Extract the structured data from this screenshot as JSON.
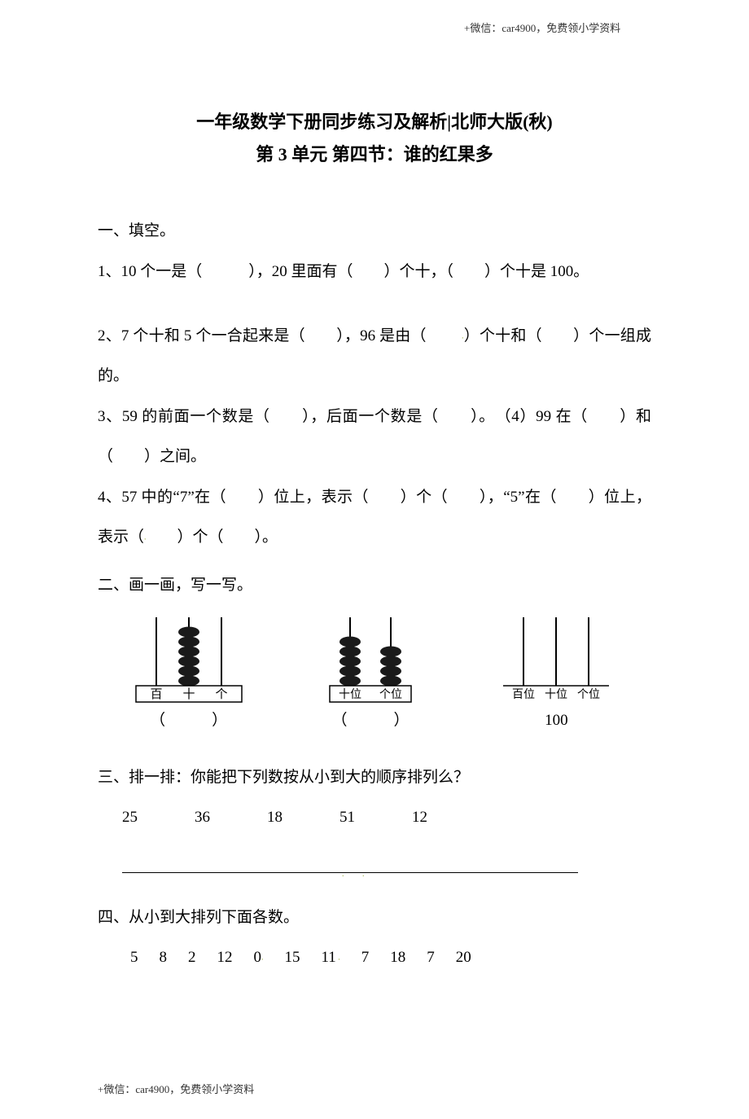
{
  "header_note": "+微信：car4900，免费领小学资料",
  "footer_note": "+微信：car4900，免费领小学资料",
  "title_line1": "一年级数学下册同步练习及解析|北师大版(秋)",
  "title_line2": "第 3 单元 第四节：谁的红果多",
  "sections": {
    "s1_label": "一、填空。",
    "q1": "1、10 个一是（　　　），20 里面有（　　）个十，（　　）个十是 100。",
    "q2": "2、7 个十和 5 个一合起来是（　　），96 是由（　　 ",
    "q2b": "）个十和（　　）个一组成的。",
    "q3": "3、59 的前面一个数是（　　），后面一个数是（　　）。　（4）99 在（　　）和（　　）之间。",
    "q4a": "4、57 中的“7”在（　　）位上，表示（　　）个（　　），“5”在（　　）位上，表示（",
    "q4b": "　　）个（　　）。",
    "s2_label": "二、画一画，写一写。",
    "s3_label": "三、排一排：你能把下列数按从小到大的顺序排列么？",
    "s4_label": "四、从小到大排列下面各数。"
  },
  "abacus": {
    "a1": {
      "labels": [
        "百",
        "十",
        "个"
      ],
      "beads": [
        0,
        6,
        0
      ],
      "caption": "（　　　）",
      "label_fontsize": 15,
      "has_box": true
    },
    "a2": {
      "labels": [
        "十位",
        "个位"
      ],
      "beads": [
        5,
        4
      ],
      "caption": "（　　　）",
      "label_fontsize": 14,
      "has_box": true
    },
    "a3": {
      "labels": [
        "百位",
        "十位",
        "个位"
      ],
      "beads": [
        0,
        0,
        0
      ],
      "caption": "100",
      "label_fontsize": 14,
      "has_box": false
    }
  },
  "sort1": [
    "25",
    "36",
    "18",
    "51",
    "12"
  ],
  "sort2": [
    "5",
    "8",
    "2",
    "12",
    "0",
    "15",
    "11",
    "7",
    "18",
    "7",
    "20"
  ],
  "colors": {
    "text": "#000000",
    "bg": "#ffffff",
    "accent_dot": "#9aaf3a",
    "bead_fill": "#1a1a1a",
    "line": "#000000"
  }
}
